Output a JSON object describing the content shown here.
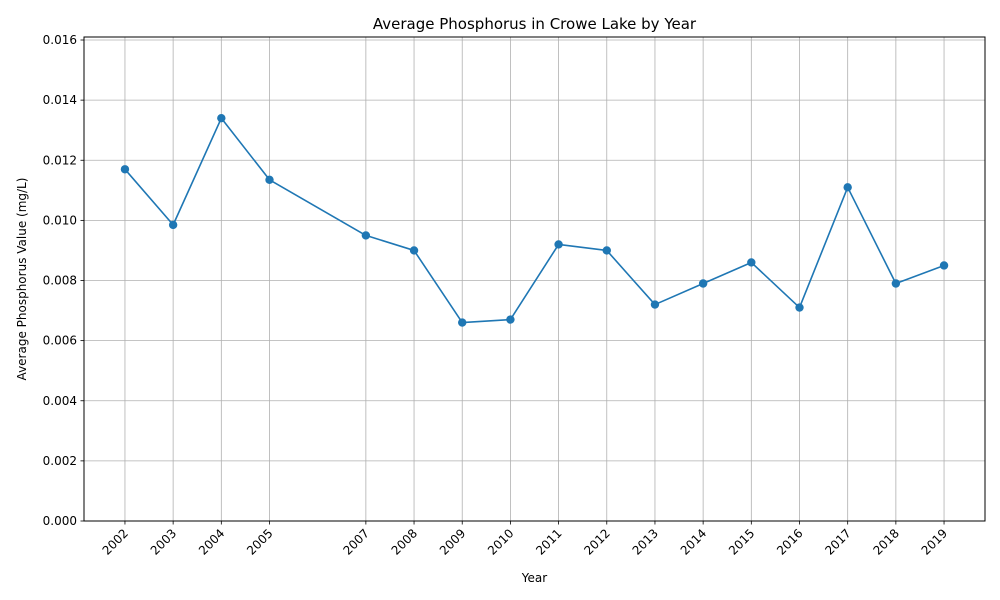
{
  "chart_data": {
    "type": "line",
    "title": "Average Phosphorus in Crowe Lake by Year",
    "xlabel": "Year",
    "ylabel": "Average Phosphorus Value (mg/L)",
    "x": [
      2002,
      2003,
      2004,
      2005,
      2007,
      2008,
      2009,
      2010,
      2011,
      2012,
      2013,
      2014,
      2015,
      2016,
      2017,
      2018,
      2019
    ],
    "x_tick_labels": [
      "2002",
      "2003",
      "2004",
      "2005",
      "2007",
      "2008",
      "2009",
      "2010",
      "2011",
      "2012",
      "2013",
      "2014",
      "2015",
      "2016",
      "2017",
      "2018",
      "2019"
    ],
    "series": [
      {
        "values": [
          0.0117,
          0.00985,
          0.0134,
          0.01135,
          0.0095,
          0.009,
          0.0066,
          0.0067,
          0.0092,
          0.009,
          0.0072,
          0.0079,
          0.0086,
          0.0071,
          0.0111,
          0.0079,
          0.0085
        ],
        "color": "#1f77b4",
        "marker": "circle"
      }
    ],
    "ylim": [
      0,
      0.0161
    ],
    "xlim": [
      2001.15,
      2019.85
    ],
    "y_ticks": [
      0.0,
      0.002,
      0.004,
      0.006,
      0.008,
      0.01,
      0.012,
      0.014,
      0.016
    ],
    "y_tick_labels": [
      "0.000",
      "0.002",
      "0.004",
      "0.006",
      "0.008",
      "0.010",
      "0.012",
      "0.014",
      "0.016"
    ],
    "grid": true,
    "legend": "none"
  }
}
